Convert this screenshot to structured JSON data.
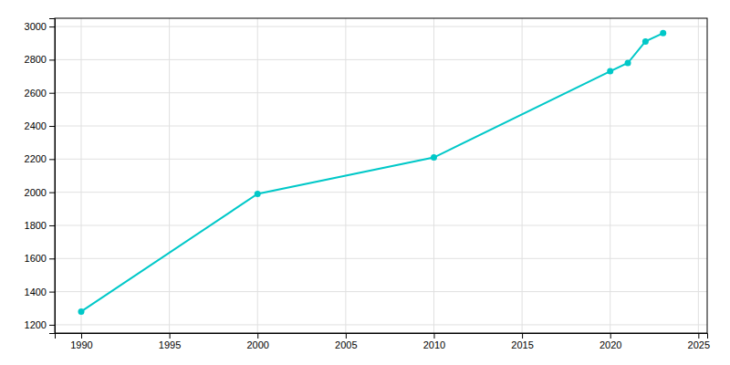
{
  "chart_data": {
    "type": "line",
    "x": [
      1990,
      2000,
      2010,
      2020,
      2021,
      2022,
      2023
    ],
    "values": [
      1280,
      1990,
      2210,
      2730,
      2780,
      2910,
      2960
    ],
    "color": "#00c8c8",
    "marker": "circle",
    "xlim": [
      1988.5,
      2025.5
    ],
    "ylim": [
      1150,
      3050
    ],
    "xticks": [
      1990,
      1995,
      2000,
      2005,
      2010,
      2015,
      2020,
      2025
    ],
    "yticks": [
      1200,
      1400,
      1600,
      1800,
      2000,
      2200,
      2400,
      2600,
      2800,
      3000
    ],
    "grid": true
  }
}
